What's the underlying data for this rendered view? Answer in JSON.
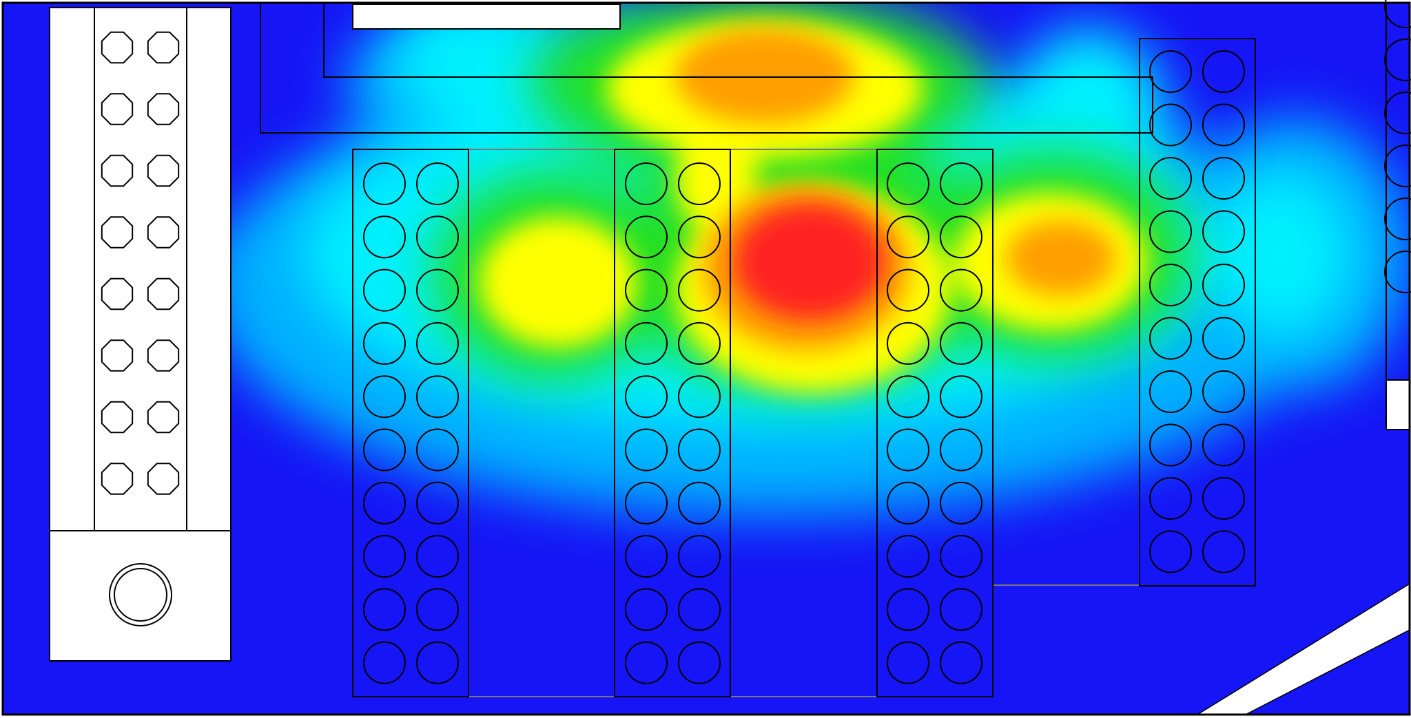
{
  "scene": {
    "type": "cfd-temperature-contour-plan-view",
    "colors": {
      "background": "#ffffff",
      "cold": "#1515f5",
      "cool": "#00b0ff",
      "cyan": "#00f0ff",
      "green": "#20e020",
      "yellow": "#ffff00",
      "orange": "#ff9f00",
      "hot": "#ff2020",
      "outline": "#000000",
      "solid_block": "#ffffff"
    },
    "legend": [],
    "title": ""
  },
  "components": {
    "left_cabinet": {
      "fan_count": 16,
      "fan_shape": "octagon"
    },
    "left_cabinet_base": {
      "fan_count": 1,
      "fan_shape": "double-circle"
    },
    "rack_1": {
      "fan_count": 20
    },
    "rack_2": {
      "fan_count": 20
    },
    "rack_3": {
      "fan_count": 20
    },
    "rack_4": {
      "fan_count": 20
    },
    "right_edge_unit": {
      "fan_count": 6
    },
    "top_vent": {},
    "overhead_duct": {},
    "diagonal_strip": {}
  }
}
